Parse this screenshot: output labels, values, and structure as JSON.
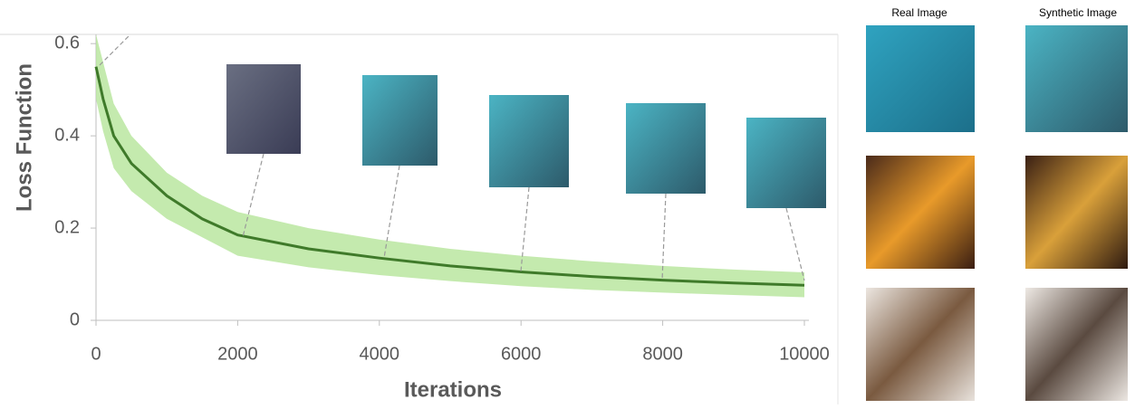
{
  "chart_data": {
    "type": "line",
    "y_label": "Loss Function",
    "x_label": "Iterations",
    "x": [
      0,
      100,
      250,
      500,
      1000,
      1500,
      2000,
      3000,
      4000,
      5000,
      6000,
      7000,
      8000,
      9000,
      10000
    ],
    "series": [
      {
        "color": "#3f7a2a",
        "values": [
          0.55,
          0.48,
          0.4,
          0.34,
          0.27,
          0.22,
          0.185,
          0.155,
          0.135,
          0.118,
          0.105,
          0.095,
          0.087,
          0.081,
          0.076
        ]
      }
    ],
    "band": {
      "color": "#b5e59a",
      "upper": [
        0.62,
        0.56,
        0.47,
        0.4,
        0.32,
        0.27,
        0.235,
        0.2,
        0.175,
        0.155,
        0.14,
        0.128,
        0.118,
        0.11,
        0.104
      ],
      "lower": [
        0.48,
        0.41,
        0.33,
        0.28,
        0.22,
        0.18,
        0.14,
        0.115,
        0.098,
        0.085,
        0.074,
        0.066,
        0.06,
        0.055,
        0.05
      ]
    },
    "xlim": [
      0,
      10000
    ],
    "xticks": [
      0,
      2000,
      4000,
      6000,
      8000,
      10000
    ],
    "ylim": [
      0,
      0.62
    ],
    "yticks": [
      0,
      0.2,
      0.4,
      0.6
    ]
  },
  "gallery": {
    "columns": [
      "Real Image",
      "Synthetic Image"
    ]
  }
}
